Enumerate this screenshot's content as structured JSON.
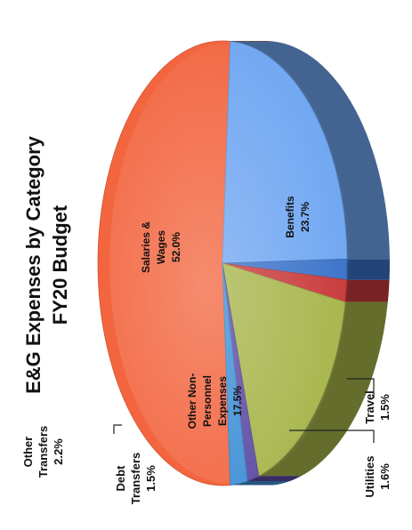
{
  "chart_data": {
    "type": "pie",
    "title": "E&G Expenses by Category",
    "subtitle": "FY20 Budget",
    "categories": [
      "Salaries & Wages",
      "Benefits",
      "Travel",
      "Utilities",
      "Other Non-Personnel Expenses",
      "Debt Transfers",
      "Other Transfers"
    ],
    "values": [
      52.0,
      23.7,
      1.5,
      1.6,
      17.5,
      1.5,
      2.2
    ],
    "value_labels": [
      "52.0%",
      "23.7%",
      "1.5%",
      "1.6%",
      "17.5%",
      "1.5%",
      "2.2%"
    ],
    "colors": [
      "#f2653f",
      "#6fa6f2",
      "#3a72c9",
      "#c8393a",
      "#a6b54a",
      "#5b4aa3",
      "#3d8fd6"
    ],
    "label_lines": {
      "salaries": [
        "Salaries &",
        "Wages"
      ],
      "benefits": [
        "Benefits"
      ],
      "travel": [
        "Travel"
      ],
      "utilities": [
        "Utilities"
      ],
      "other_nonpersonnel": [
        "Other Non-",
        "Personnel",
        "Expenses"
      ],
      "debt": [
        "Debt",
        "Transfers"
      ],
      "other_transfers": [
        "Other",
        "Transfers"
      ]
    },
    "orientation": "rotated 90° counter-clockwise, 3D pie"
  }
}
